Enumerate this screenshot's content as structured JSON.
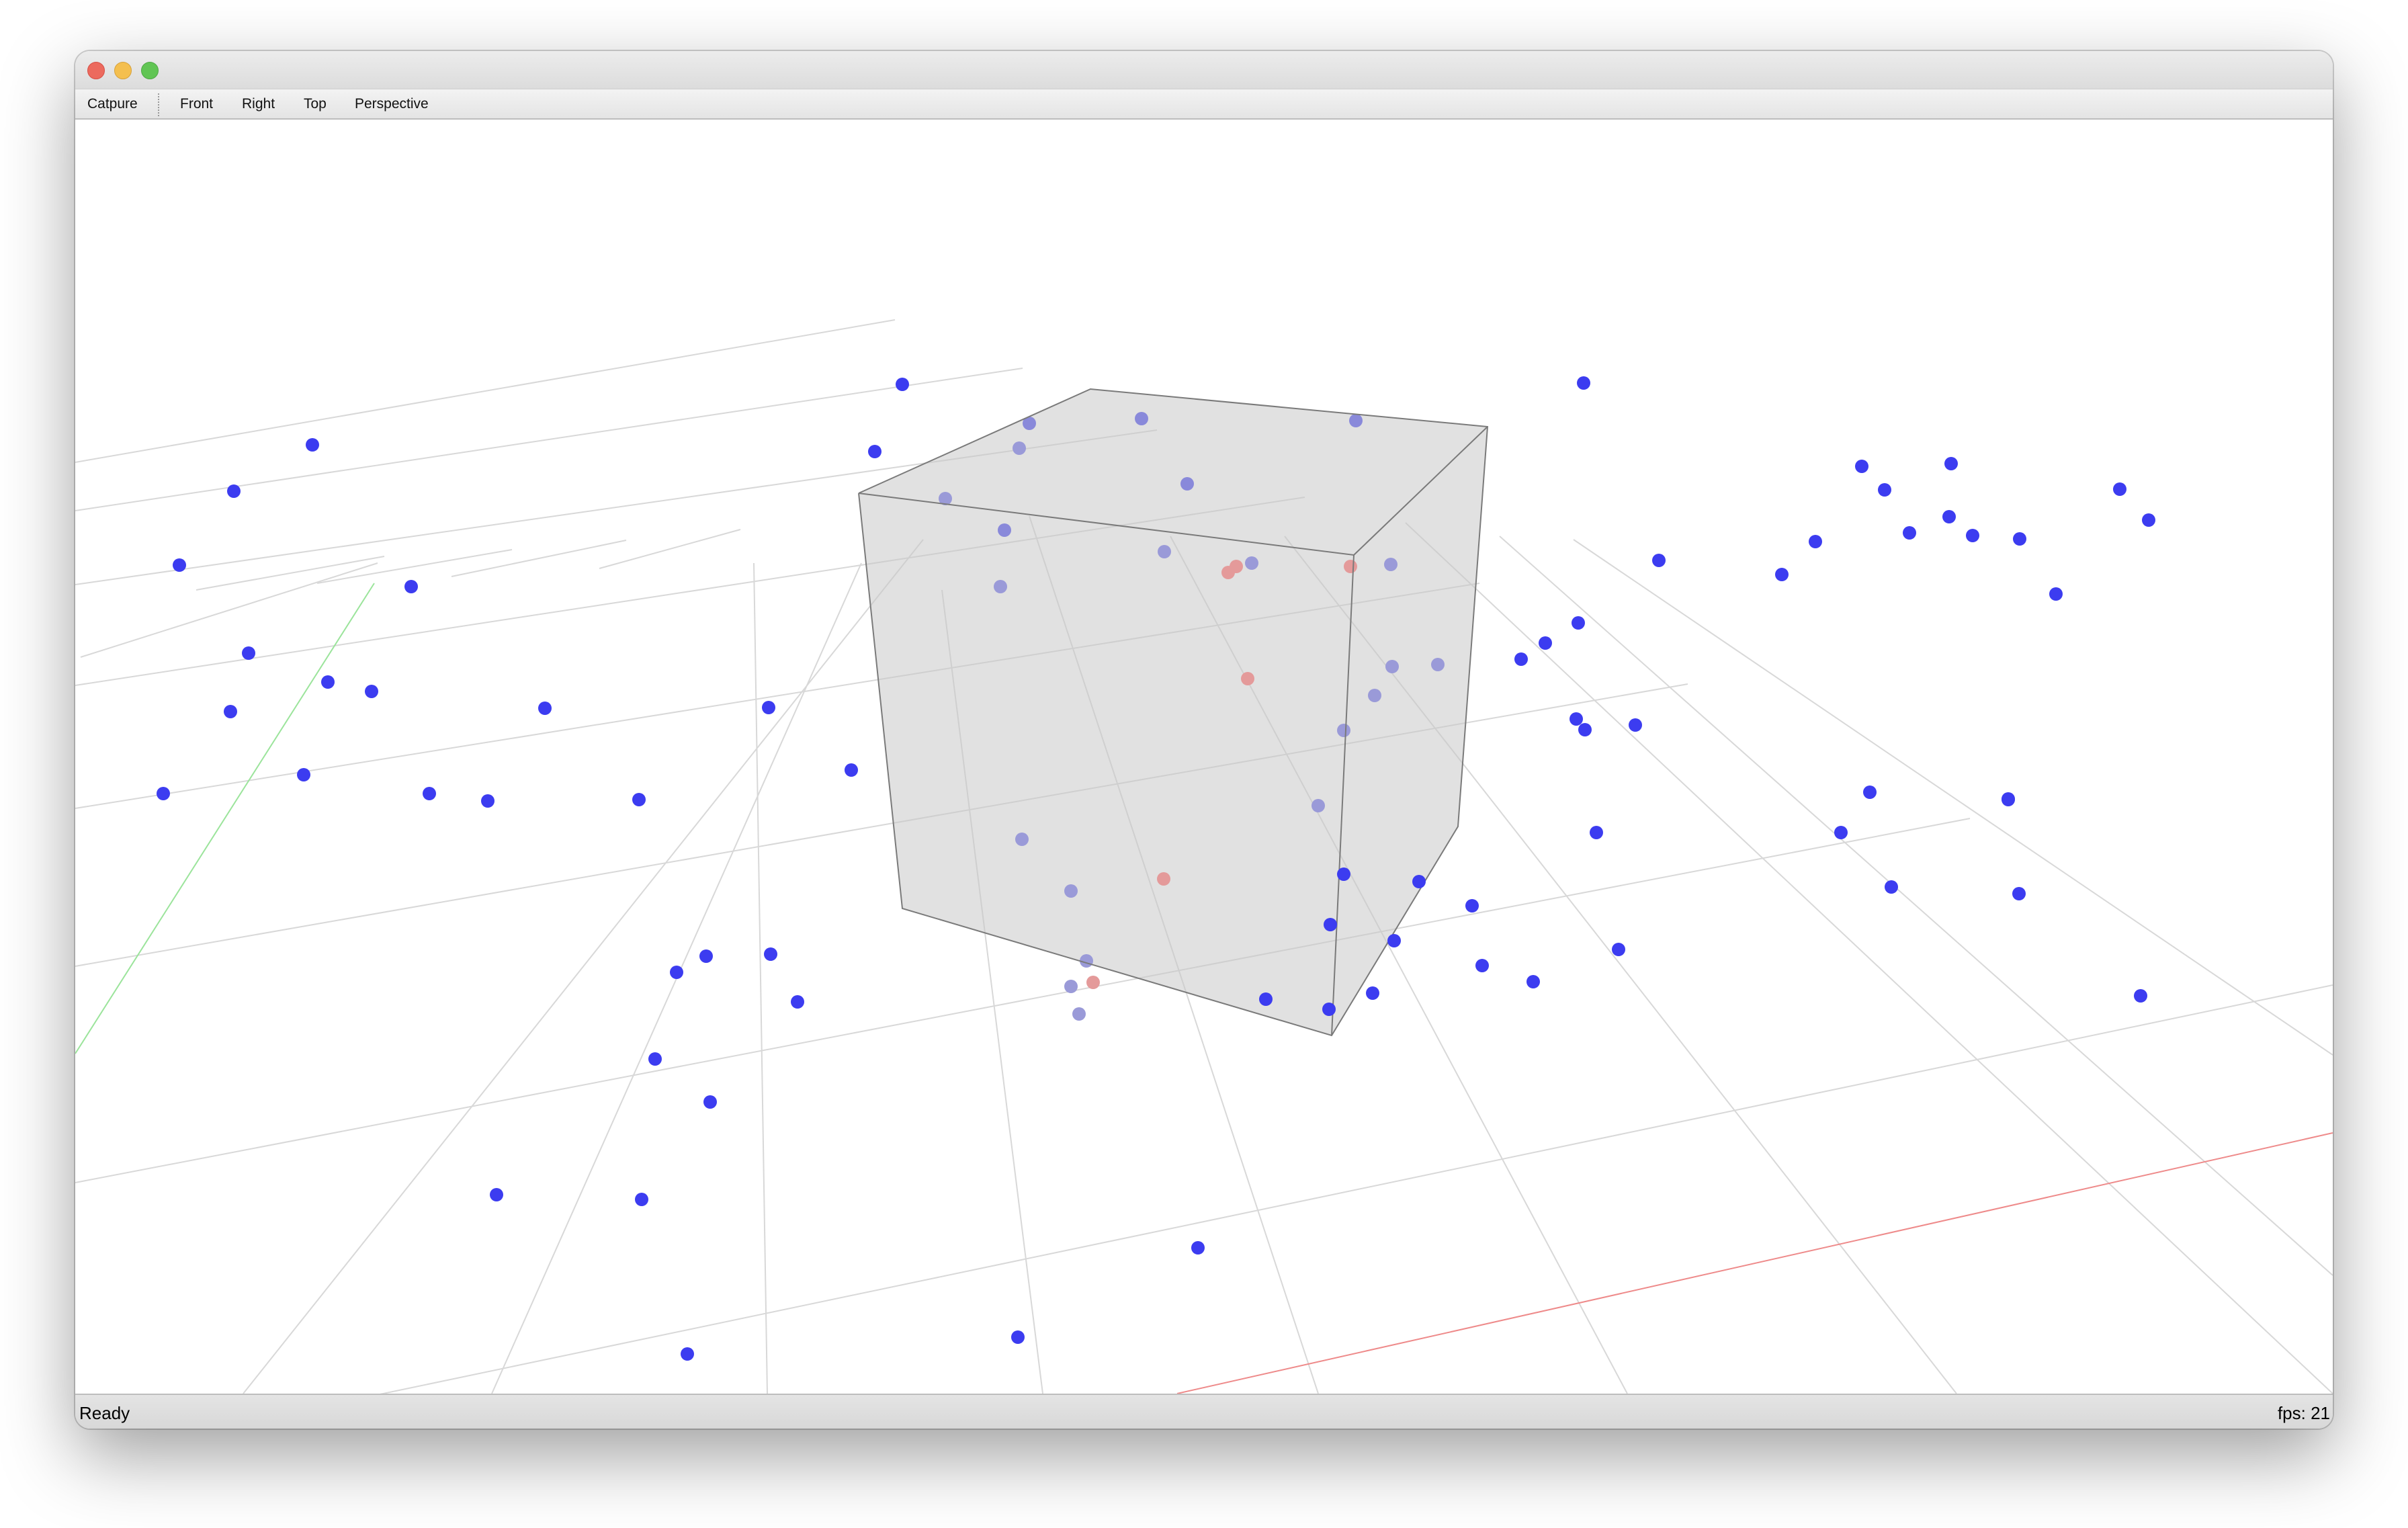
{
  "window": {
    "controls": {
      "close_color": "#ec6a5e",
      "minimize_color": "#f4bf4f",
      "maximize_color": "#61c554"
    }
  },
  "menubar": {
    "capture_label": "Catpure",
    "views": [
      {
        "label": "Front"
      },
      {
        "label": "Right"
      },
      {
        "label": "Top"
      },
      {
        "label": "Perspective"
      }
    ]
  },
  "scene": {
    "camera": "perspective",
    "grid_color": "#d8d8d8",
    "x_axis_color": "#ee8a8a",
    "y_axis_color": "#9be49b",
    "box_fill": "#c8c8c8",
    "box_edge": "#7a7a7a",
    "point_color": "#3c3cf0",
    "point_inside_box_color": "#9a9ad8",
    "highlight_point_color": "#e49a9a"
  },
  "statusbar": {
    "status": "Ready",
    "fps": "fps: 21"
  }
}
